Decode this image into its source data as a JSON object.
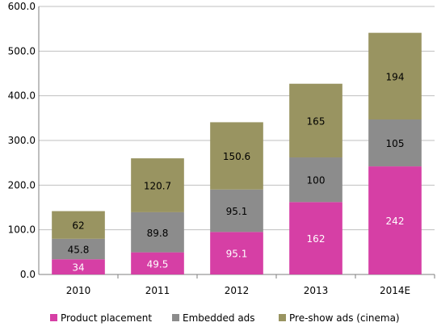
{
  "chart_data": {
    "type": "bar",
    "stacked": true,
    "title": "",
    "xlabel": "",
    "ylabel": "",
    "categories": [
      "2010",
      "2011",
      "2012",
      "2013",
      "2014E"
    ],
    "series": [
      {
        "name": "Product placement",
        "values": [
          34,
          49.5,
          95.1,
          162,
          242
        ],
        "labels": [
          "34",
          "49.5",
          "95.1",
          "162",
          "242"
        ],
        "color": "#d63fa5",
        "label_color": "#ffffff"
      },
      {
        "name": "Embedded ads",
        "values": [
          45.8,
          89.8,
          95.1,
          100,
          105
        ],
        "labels": [
          "45.8",
          "89.8",
          "95.1",
          "100",
          "105"
        ],
        "color": "#8c8c8c",
        "label_color": "#000000"
      },
      {
        "name": "Pre-show ads (cinema)",
        "values": [
          62,
          120.7,
          150.6,
          165,
          194
        ],
        "labels": [
          "62",
          "120.7",
          "150.6",
          "165",
          "194"
        ],
        "color": "#999461",
        "label_color": "#000000"
      }
    ],
    "ylim": [
      0,
      600
    ],
    "yticks": [
      "0.0",
      "100.0",
      "200.0",
      "300.0",
      "400.0",
      "500.0",
      "600.0"
    ],
    "grid": true,
    "legend_position": "bottom"
  }
}
